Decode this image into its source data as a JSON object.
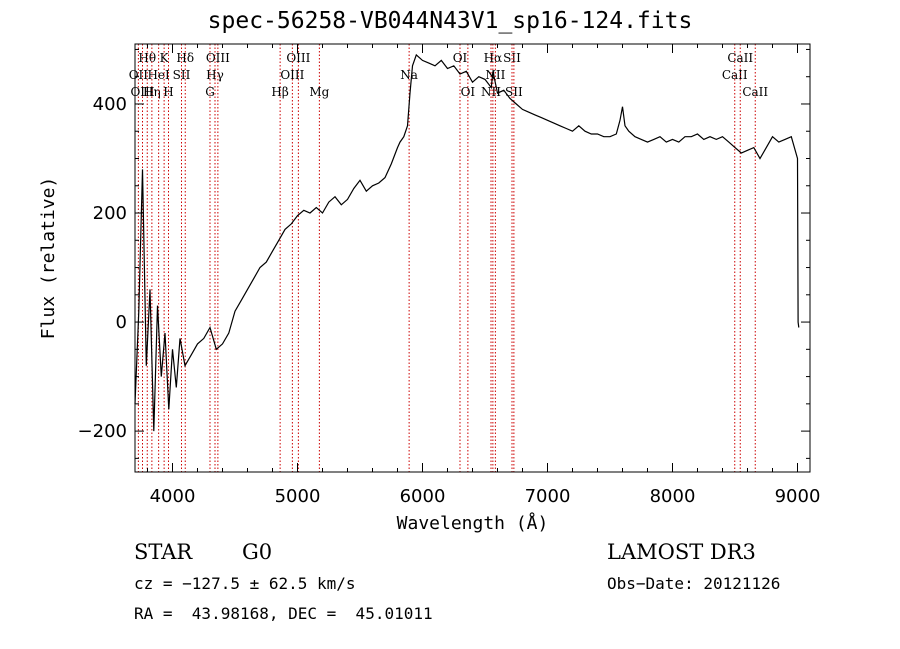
{
  "chart_data": {
    "type": "line",
    "title": "spec-56258-VB044N43V1_sp16-124.fits",
    "xlabel": "Wavelength (Å)",
    "ylabel": "Flux (relative)",
    "xlim": [
      3700,
      9100
    ],
    "ylim": [
      -275,
      510
    ],
    "x_ticks": [
      4000,
      5000,
      6000,
      7000,
      8000,
      9000
    ],
    "y_ticks": [
      -200,
      0,
      200,
      400
    ],
    "series": [
      {
        "name": "flux",
        "x": [
          3700,
          3730,
          3760,
          3790,
          3820,
          3850,
          3880,
          3910,
          3940,
          3970,
          4000,
          4030,
          4060,
          4100,
          4150,
          4200,
          4250,
          4300,
          4350,
          4400,
          4450,
          4500,
          4550,
          4600,
          4650,
          4700,
          4750,
          4800,
          4850,
          4900,
          4950,
          5000,
          5050,
          5100,
          5150,
          5200,
          5250,
          5300,
          5350,
          5400,
          5450,
          5500,
          5550,
          5600,
          5650,
          5700,
          5750,
          5800,
          5820,
          5850,
          5880,
          5900,
          5920,
          5950,
          6000,
          6050,
          6100,
          6150,
          6200,
          6250,
          6300,
          6350,
          6400,
          6450,
          6500,
          6550,
          6563,
          6600,
          6650,
          6700,
          6750,
          6800,
          6850,
          6900,
          6950,
          7000,
          7050,
          7100,
          7150,
          7200,
          7250,
          7300,
          7350,
          7400,
          7450,
          7500,
          7550,
          7580,
          7600,
          7620,
          7650,
          7700,
          7750,
          7800,
          7850,
          7900,
          7950,
          8000,
          8050,
          8100,
          8150,
          8200,
          8250,
          8300,
          8350,
          8400,
          8450,
          8500,
          8550,
          8600,
          8650,
          8700,
          8750,
          8800,
          8850,
          8900,
          8950,
          9000,
          9005,
          9010
        ],
        "y": [
          -150,
          20,
          280,
          -80,
          60,
          -200,
          30,
          -100,
          -20,
          -160,
          -50,
          -120,
          -30,
          -80,
          -60,
          -40,
          -30,
          -10,
          -50,
          -40,
          -20,
          20,
          40,
          60,
          80,
          100,
          110,
          130,
          150,
          170,
          180,
          195,
          205,
          200,
          210,
          200,
          220,
          230,
          215,
          225,
          245,
          260,
          240,
          250,
          255,
          265,
          290,
          320,
          330,
          340,
          360,
          420,
          470,
          490,
          480,
          475,
          470,
          480,
          465,
          470,
          455,
          460,
          440,
          450,
          445,
          430,
          460,
          420,
          425,
          410,
          400,
          390,
          385,
          380,
          375,
          370,
          365,
          360,
          355,
          350,
          360,
          350,
          345,
          345,
          340,
          340,
          345,
          370,
          395,
          360,
          350,
          340,
          335,
          330,
          335,
          340,
          330,
          335,
          330,
          340,
          340,
          345,
          335,
          340,
          335,
          340,
          330,
          320,
          310,
          315,
          320,
          300,
          320,
          340,
          330,
          335,
          340,
          300,
          0,
          -10
        ]
      }
    ],
    "lines": [
      {
        "label": "Hθ",
        "x": 3798,
        "row": 0
      },
      {
        "label": "OII",
        "x": 3727,
        "row": 1
      },
      {
        "label": "OIII",
        "x": 3760,
        "row": 2
      },
      {
        "label": "Hη",
        "x": 3835,
        "row": 2
      },
      {
        "label": "HeI",
        "x": 3889,
        "row": 1
      },
      {
        "label": "K",
        "x": 3933,
        "row": 0
      },
      {
        "label": "H",
        "x": 3968,
        "row": 2
      },
      {
        "label": "SII",
        "x": 4072,
        "row": 1
      },
      {
        "label": "Hδ",
        "x": 4102,
        "row": 0
      },
      {
        "label": "OIII",
        "x": 4363,
        "row": 0
      },
      {
        "label": "Hγ",
        "x": 4340,
        "row": 1
      },
      {
        "label": "G",
        "x": 4300,
        "row": 2
      },
      {
        "label": "Hβ",
        "x": 4861,
        "row": 2
      },
      {
        "label": "OIII",
        "x": 5007,
        "row": 0
      },
      {
        "label": "OIII",
        "x": 4959,
        "row": 1
      },
      {
        "label": "Mg",
        "x": 5175,
        "row": 2
      },
      {
        "label": "Na",
        "x": 5893,
        "row": 1
      },
      {
        "label": "OI",
        "x": 6300,
        "row": 0
      },
      {
        "label": "OI",
        "x": 6363,
        "row": 2
      },
      {
        "label": "NII",
        "x": 6548,
        "row": 2
      },
      {
        "label": "Hα",
        "x": 6563,
        "row": 0
      },
      {
        "label": "NII",
        "x": 6583,
        "row": 1
      },
      {
        "label": "SII",
        "x": 6716,
        "row": 0
      },
      {
        "label": "SII",
        "x": 6731,
        "row": 2
      },
      {
        "label": "CaII",
        "x": 8498,
        "row": 1
      },
      {
        "label": "CaII",
        "x": 8542,
        "row": 0
      },
      {
        "label": "CaII",
        "x": 8662,
        "row": 2
      }
    ]
  },
  "info": {
    "class": "STAR",
    "subclass": "G0",
    "survey": "LAMOST DR3",
    "cz": "cz = −127.5 ± 62.5 km/s",
    "obs_date": "Obs−Date: 20121126",
    "coords": "RA =  43.98168, DEC =  45.01011"
  }
}
